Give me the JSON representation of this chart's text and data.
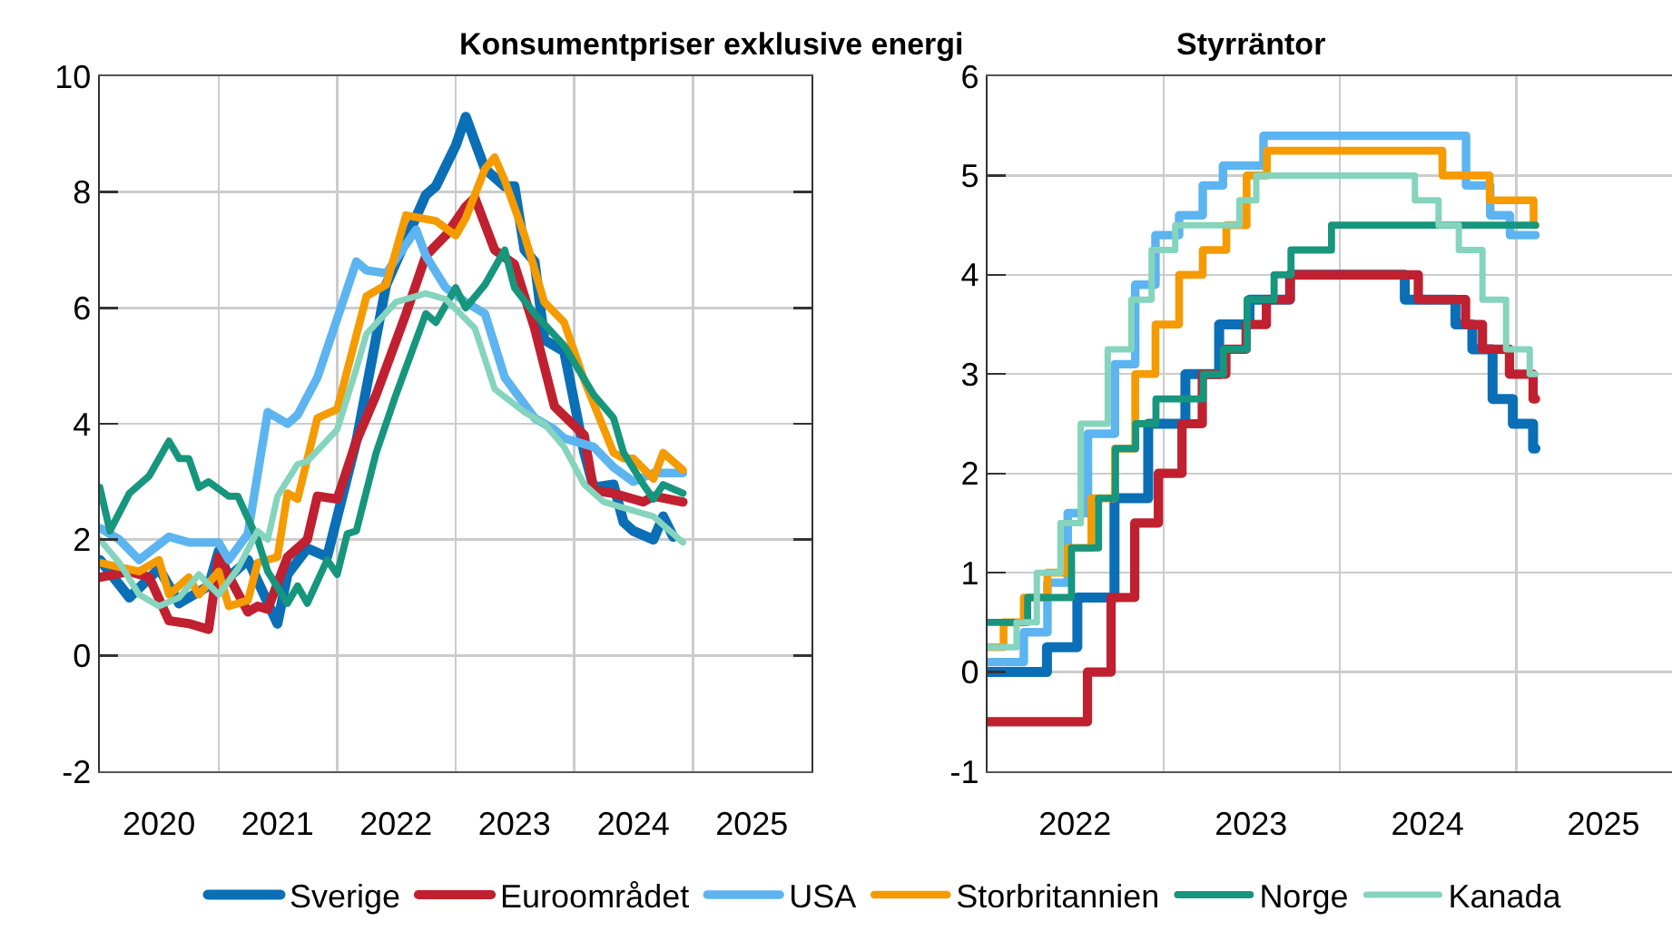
{
  "chart_data": [
    {
      "type": "line",
      "title": "Konsumentpriser exklusive energi",
      "xlim": [
        "2020-01-01",
        "2026-01-01"
      ],
      "xticks": [
        {
          "value": "2020-07-01",
          "label": "2020"
        },
        {
          "value": "2021-07-01",
          "label": "2021"
        },
        {
          "value": "2022-07-01",
          "label": "2022"
        },
        {
          "value": "2023-07-01",
          "label": "2023"
        },
        {
          "value": "2024-07-01",
          "label": "2024"
        },
        {
          "value": "2025-07-01",
          "label": "2025"
        },
        {
          "value": "2021-01-01",
          "label": null
        },
        {
          "value": "2022-01-01",
          "label": null
        },
        {
          "value": "2023-01-01",
          "label": null
        },
        {
          "value": "2024-01-01",
          "label": null
        },
        {
          "value": "2025-01-01",
          "label": null
        }
      ],
      "ylim": [
        -2,
        10
      ],
      "yticks": [
        -2,
        0,
        2,
        4,
        6,
        8,
        10
      ],
      "grid": true,
      "legend": "bottom",
      "series": [
        {
          "name": "Sverige",
          "color": "#0a6fb6",
          "x": [
            "2020-01",
            "2020-04",
            "2020-07",
            "2020-09",
            "2020-12",
            "2021-01",
            "2021-02",
            "2021-04",
            "2021-07",
            "2021-08",
            "2021-10",
            "2021-12",
            "2022-03",
            "2022-06",
            "2022-10",
            "2022-11",
            "2023-01",
            "2023-02",
            "2023-04",
            "2023-06",
            "2023-07",
            "2023-08",
            "2023-09",
            "2023-10",
            "2023-12",
            "2024-02",
            "2024-03",
            "2024-05",
            "2024-06",
            "2024-07",
            "2024-09",
            "2024-10",
            "2024-11"
          ],
          "values": [
            1.65,
            1.0,
            1.5,
            0.9,
            1.2,
            1.8,
            1.35,
            1.65,
            0.55,
            1.4,
            1.85,
            1.7,
            3.7,
            6.4,
            7.95,
            8.1,
            8.8,
            9.3,
            8.4,
            8.1,
            8.1,
            7.0,
            6.8,
            5.45,
            5.25,
            3.5,
            2.9,
            2.95,
            2.3,
            2.15,
            2.0,
            2.4,
            2.05
          ]
        },
        {
          "name": "Euroområdet",
          "color": "#c0202f",
          "x": [
            "2020-01",
            "2020-04",
            "2020-06",
            "2020-08",
            "2020-10",
            "2020-12",
            "2021-01",
            "2021-04",
            "2021-05",
            "2021-06",
            "2021-08",
            "2021-10",
            "2021-11",
            "2022-01",
            "2022-03",
            "2022-05",
            "2022-08",
            "2022-10",
            "2022-12",
            "2023-02",
            "2023-03",
            "2023-05",
            "2023-07",
            "2023-09",
            "2023-11",
            "2024-02",
            "2024-03",
            "2024-05",
            "2024-08",
            "2024-09",
            "2024-12"
          ],
          "values": [
            1.35,
            1.45,
            1.35,
            0.6,
            0.55,
            0.45,
            1.7,
            0.75,
            0.85,
            0.8,
            1.7,
            2.0,
            2.75,
            2.7,
            3.7,
            4.5,
            5.9,
            6.9,
            7.25,
            7.75,
            7.9,
            7.0,
            6.75,
            5.65,
            4.3,
            3.8,
            2.85,
            2.8,
            2.65,
            2.75,
            2.65
          ]
        },
        {
          "name": "USA",
          "color": "#5cb4f0",
          "x": [
            "2020-01",
            "2020-03",
            "2020-05",
            "2020-08",
            "2020-10",
            "2021-01",
            "2021-02",
            "2021-04",
            "2021-06",
            "2021-08",
            "2021-09",
            "2021-11",
            "2022-03",
            "2022-04",
            "2022-06",
            "2022-09",
            "2022-10",
            "2022-12",
            "2023-02",
            "2023-04",
            "2023-06",
            "2023-09",
            "2023-11",
            "2023-12",
            "2024-03",
            "2024-05",
            "2024-07",
            "2024-09",
            "2024-12"
          ],
          "values": [
            2.2,
            2.0,
            1.65,
            2.05,
            1.95,
            1.95,
            1.65,
            2.1,
            4.2,
            4.0,
            4.15,
            4.8,
            6.8,
            6.65,
            6.6,
            7.35,
            6.9,
            6.35,
            6.1,
            5.9,
            4.8,
            4.1,
            3.9,
            3.75,
            3.6,
            3.25,
            3.0,
            3.15,
            3.15
          ]
        },
        {
          "name": "Storbritannien",
          "color": "#f59b00",
          "x": [
            "2020-01",
            "2020-05",
            "2020-07",
            "2020-08",
            "2020-10",
            "2020-11",
            "2021-01",
            "2021-02",
            "2021-04",
            "2021-05",
            "2021-07",
            "2021-08",
            "2021-09",
            "2021-11",
            "2022-01",
            "2022-04",
            "2022-06",
            "2022-08",
            "2022-11",
            "2023-01",
            "2023-02",
            "2023-04",
            "2023-05",
            "2023-06",
            "2023-08",
            "2023-10",
            "2023-12",
            "2024-02",
            "2024-05",
            "2024-06",
            "2024-07",
            "2024-09",
            "2024-10",
            "2024-12"
          ],
          "values": [
            1.6,
            1.45,
            1.65,
            1.05,
            1.35,
            1.05,
            1.45,
            0.85,
            0.95,
            1.6,
            1.7,
            2.8,
            2.7,
            4.1,
            4.25,
            6.2,
            6.4,
            7.6,
            7.5,
            7.25,
            7.55,
            8.4,
            8.6,
            8.2,
            7.25,
            6.1,
            5.75,
            4.75,
            3.5,
            3.4,
            3.4,
            3.05,
            3.5,
            3.2
          ]
        },
        {
          "name": "Norge",
          "color": "#16967c",
          "x": [
            "2020-01",
            "2020-02",
            "2020-04",
            "2020-06",
            "2020-08",
            "2020-09",
            "2020-10",
            "2020-11",
            "2020-12",
            "2021-02",
            "2021-03",
            "2021-05",
            "2021-06",
            "2021-08",
            "2021-09",
            "2021-10",
            "2021-12",
            "2022-01",
            "2022-02",
            "2022-03",
            "2022-05",
            "2022-07",
            "2022-10",
            "2022-11",
            "2023-01",
            "2023-02",
            "2023-04",
            "2023-06",
            "2023-07",
            "2023-09",
            "2023-12",
            "2024-03",
            "2024-05",
            "2024-06",
            "2024-08",
            "2024-09",
            "2024-10",
            "2024-12"
          ],
          "values": [
            2.9,
            2.15,
            2.8,
            3.1,
            3.7,
            3.4,
            3.4,
            2.9,
            3.0,
            2.75,
            2.75,
            2.0,
            1.45,
            0.9,
            1.2,
            0.9,
            1.65,
            1.4,
            2.1,
            2.15,
            3.5,
            4.5,
            5.9,
            5.75,
            6.35,
            6.0,
            6.4,
            7.0,
            6.35,
            5.9,
            5.35,
            4.5,
            4.1,
            3.5,
            2.95,
            2.7,
            2.95,
            2.8
          ]
        },
        {
          "name": "Kanada",
          "color": "#85d4bd",
          "x": [
            "2020-01",
            "2020-03",
            "2020-05",
            "2020-07",
            "2020-09",
            "2020-11",
            "2021-01",
            "2021-03",
            "2021-05",
            "2021-06",
            "2021-07",
            "2021-09",
            "2021-10",
            "2022-01",
            "2022-03",
            "2022-04",
            "2022-07",
            "2022-10",
            "2022-12",
            "2023-03",
            "2023-05",
            "2023-08",
            "2023-10",
            "2023-12",
            "2024-02",
            "2024-04",
            "2024-06",
            "2024-09",
            "2024-12"
          ],
          "values": [
            2.0,
            1.6,
            1.05,
            0.85,
            1.0,
            1.4,
            1.05,
            1.5,
            2.15,
            2.0,
            2.75,
            3.3,
            3.35,
            3.9,
            4.95,
            5.55,
            6.1,
            6.25,
            6.15,
            5.65,
            4.6,
            4.2,
            4.0,
            3.6,
            2.95,
            2.65,
            2.55,
            2.4,
            1.95
          ]
        }
      ]
    },
    {
      "type": "step",
      "title": "Styrräntor",
      "xlim": [
        "2022-01-01",
        "2025-11-20"
      ],
      "xticks": [
        {
          "value": "2022-07-01",
          "label": "2022"
        },
        {
          "value": "2023-07-01",
          "label": "2023"
        },
        {
          "value": "2024-07-01",
          "label": "2024"
        },
        {
          "value": "2025-07-01",
          "label": "2025"
        },
        {
          "value": "2023-01-01",
          "label": null
        },
        {
          "value": "2024-01-01",
          "label": null
        },
        {
          "value": "2025-01-01",
          "label": null
        }
      ],
      "ylim": [
        -1,
        6
      ],
      "yticks": [
        -1,
        0,
        1,
        2,
        3,
        4,
        5,
        6
      ],
      "grid": true,
      "series": [
        {
          "color": "#0a6fb6",
          "x": [
            "2022-01-01",
            "2022-05-04",
            "2022-07-06",
            "2022-09-21",
            "2022-11-30",
            "2023-02-15",
            "2023-04-26",
            "2023-06-28",
            "2023-09-20",
            "2024-05-15",
            "2024-08-28",
            "2024-10-02",
            "2024-11-13",
            "2024-12-25",
            "2025-02-05",
            "2025-02-10"
          ],
          "values": [
            0,
            0.25,
            0.75,
            1.75,
            2.5,
            3.0,
            3.5,
            3.75,
            4.0,
            3.75,
            3.5,
            3.25,
            2.75,
            2.5,
            2.25,
            2.25
          ]
        },
        {
          "color": "#c0202f",
          "x": [
            "2022-01-01",
            "2022-07-27",
            "2022-09-14",
            "2022-11-02",
            "2022-12-21",
            "2023-02-08",
            "2023-03-22",
            "2023-05-10",
            "2023-06-21",
            "2023-08-02",
            "2023-09-20",
            "2024-06-12",
            "2024-09-18",
            "2024-10-23",
            "2024-12-18",
            "2025-02-05",
            "2025-02-10"
          ],
          "values": [
            -0.5,
            0,
            0.75,
            1.5,
            2.0,
            2.5,
            3.0,
            3.25,
            3.5,
            3.75,
            4.0,
            3.75,
            3.5,
            3.25,
            3.0,
            2.75,
            2.75
          ]
        },
        {
          "color": "#5cb4f0",
          "x": [
            "2022-01-01",
            "2022-03-17",
            "2022-05-05",
            "2022-06-16",
            "2022-07-28",
            "2022-09-22",
            "2022-11-03",
            "2022-12-15",
            "2023-02-02",
            "2023-03-23",
            "2023-05-04",
            "2023-07-27",
            "2024-09-19",
            "2024-11-08",
            "2024-12-19",
            "2025-02-10"
          ],
          "values": [
            0.1,
            0.4,
            0.9,
            1.6,
            2.4,
            3.1,
            3.9,
            4.4,
            4.6,
            4.9,
            5.1,
            5.4,
            4.9,
            4.6,
            4.4,
            4.4
          ]
        },
        {
          "color": "#f59b00",
          "x": [
            "2022-01-01",
            "2022-02-03",
            "2022-03-17",
            "2022-05-05",
            "2022-06-16",
            "2022-08-04",
            "2022-09-22",
            "2022-11-03",
            "2022-12-15",
            "2023-02-02",
            "2023-03-23",
            "2023-05-11",
            "2023-06-22",
            "2023-08-03",
            "2024-08-01",
            "2024-11-07",
            "2025-02-06",
            "2025-02-10"
          ],
          "values": [
            0.25,
            0.5,
            0.75,
            1.0,
            1.25,
            1.75,
            2.25,
            3.0,
            3.5,
            4.0,
            4.25,
            4.5,
            5.0,
            5.25,
            5.0,
            4.75,
            4.5,
            4.5
          ]
        },
        {
          "color": "#16967c",
          "x": [
            "2022-01-01",
            "2022-03-25",
            "2022-06-24",
            "2022-08-19",
            "2022-09-23",
            "2022-11-04",
            "2022-12-16",
            "2023-03-24",
            "2023-05-05",
            "2023-06-23",
            "2023-08-18",
            "2023-09-22",
            "2023-12-15",
            "2025-02-10"
          ],
          "values": [
            0.5,
            0.75,
            1.25,
            1.75,
            2.25,
            2.5,
            2.75,
            3.0,
            3.25,
            3.75,
            4.0,
            4.25,
            4.5,
            4.5
          ]
        },
        {
          "color": "#85d4bd",
          "x": [
            "2022-01-01",
            "2022-03-02",
            "2022-04-13",
            "2022-06-01",
            "2022-07-13",
            "2022-09-07",
            "2022-10-26",
            "2022-12-07",
            "2023-01-25",
            "2023-06-07",
            "2023-07-12",
            "2024-06-05",
            "2024-07-24",
            "2024-09-04",
            "2024-10-23",
            "2024-12-11",
            "2025-01-29",
            "2025-02-10"
          ],
          "values": [
            0.25,
            0.5,
            1.0,
            1.5,
            2.5,
            3.25,
            3.75,
            4.25,
            4.5,
            4.75,
            5.0,
            4.75,
            4.5,
            4.25,
            3.75,
            3.25,
            3.0,
            3.0
          ]
        }
      ]
    }
  ]
}
